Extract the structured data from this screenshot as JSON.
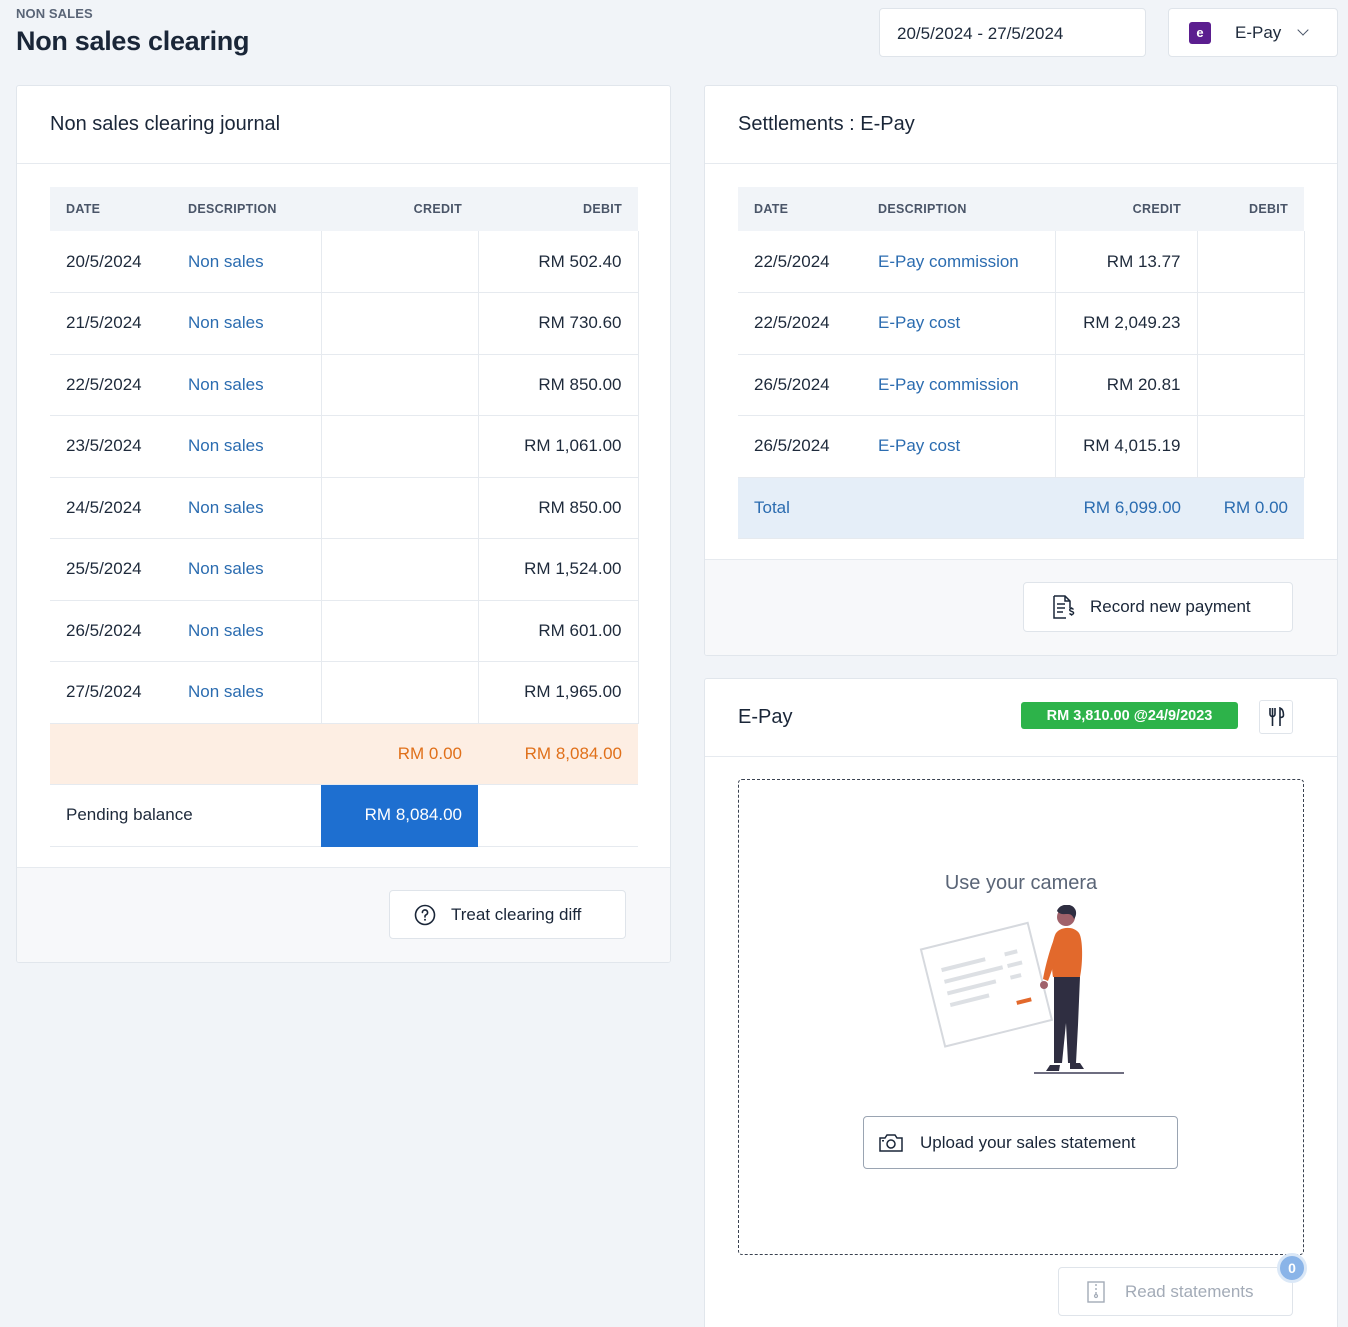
{
  "header": {
    "eyebrow": "NON SALES",
    "title": "Non sales clearing",
    "date_range": "20/5/2024 - 27/5/2024",
    "provider": "E-Pay"
  },
  "journal": {
    "title": "Non sales clearing journal",
    "columns": [
      "DATE",
      "DESCRIPTION",
      "CREDIT",
      "DEBIT"
    ],
    "rows": [
      {
        "date": "20/5/2024",
        "description": "Non sales",
        "credit": "",
        "debit": "RM 502.40"
      },
      {
        "date": "21/5/2024",
        "description": "Non sales",
        "credit": "",
        "debit": "RM 730.60"
      },
      {
        "date": "22/5/2024",
        "description": "Non sales",
        "credit": "",
        "debit": "RM 850.00"
      },
      {
        "date": "23/5/2024",
        "description": "Non sales",
        "credit": "",
        "debit": "RM 1,061.00"
      },
      {
        "date": "24/5/2024",
        "description": "Non sales",
        "credit": "",
        "debit": "RM 850.00"
      },
      {
        "date": "25/5/2024",
        "description": "Non sales",
        "credit": "",
        "debit": "RM 1,524.00"
      },
      {
        "date": "26/5/2024",
        "description": "Non sales",
        "credit": "",
        "debit": "RM 601.00"
      },
      {
        "date": "27/5/2024",
        "description": "Non sales",
        "credit": "",
        "debit": "RM 1,965.00"
      }
    ],
    "totals": {
      "credit": "RM 0.00",
      "debit": "RM 8,084.00"
    },
    "pending_label": "Pending balance",
    "pending_value": "RM 8,084.00",
    "treat_button": "Treat clearing diff"
  },
  "settlements": {
    "title": "Settlements : E-Pay",
    "columns": [
      "DATE",
      "DESCRIPTION",
      "CREDIT",
      "DEBIT"
    ],
    "rows": [
      {
        "date": "22/5/2024",
        "description": "E-Pay commission",
        "credit": "RM 13.77",
        "debit": ""
      },
      {
        "date": "22/5/2024",
        "description": "E-Pay cost",
        "credit": "RM 2,049.23",
        "debit": ""
      },
      {
        "date": "26/5/2024",
        "description": "E-Pay commission",
        "credit": "RM 20.81",
        "debit": ""
      },
      {
        "date": "26/5/2024",
        "description": "E-Pay cost",
        "credit": "RM 4,015.19",
        "debit": ""
      }
    ],
    "total_label": "Total",
    "total_credit": "RM 6,099.00",
    "total_debit": "RM 0.00",
    "record_button": "Record new payment"
  },
  "epay": {
    "title": "E-Pay",
    "balance_badge": "RM 3,810.00 @24/9/2023",
    "camera_title": "Use your camera",
    "upload_button": "Upload your sales statement",
    "read_button": "Read statements",
    "read_count": "0"
  },
  "colors": {
    "link": "#2b6cb0",
    "orange": "#e0701a",
    "total_row_bg": "#fdeee3",
    "pending_bg": "#1e6fd0",
    "badge_green": "#2db34a",
    "illustration_orange": "#e2692c"
  }
}
